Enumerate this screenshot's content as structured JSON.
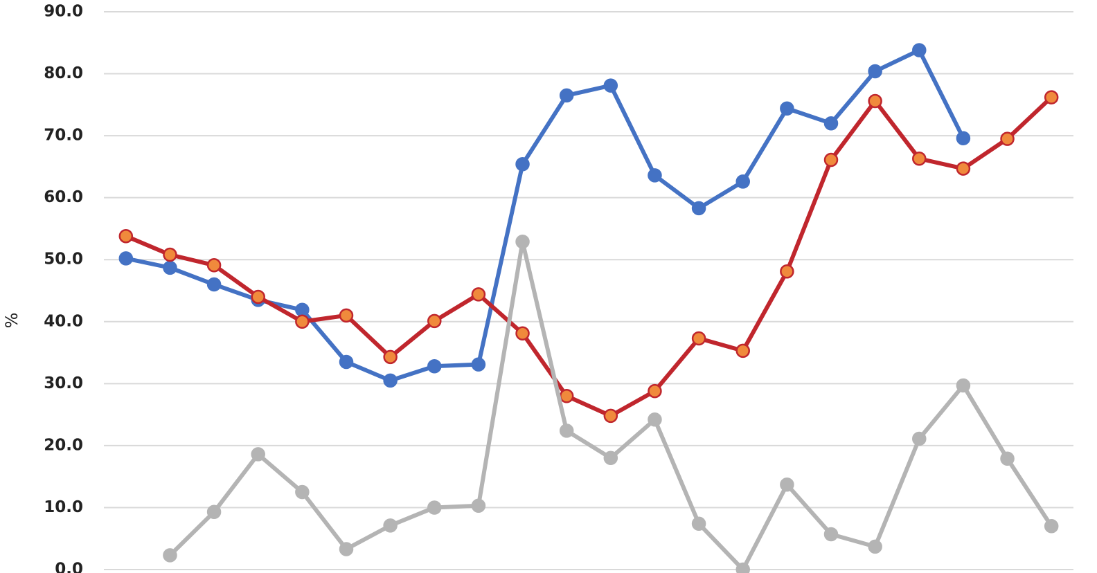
{
  "chart_data": {
    "type": "line",
    "ylabel": "%",
    "categories": [
      null,
      null,
      null,
      null,
      null,
      null,
      null,
      null,
      null,
      null,
      null,
      null,
      null,
      null,
      null,
      null,
      null,
      null,
      null,
      null,
      null,
      null
    ],
    "ylim": [
      0,
      90
    ],
    "yticks": [
      {
        "value": 0,
        "label": "0.0"
      },
      {
        "value": 10,
        "label": "10.0"
      },
      {
        "value": 20,
        "label": "20.0"
      },
      {
        "value": 30,
        "label": "30.0"
      },
      {
        "value": 40,
        "label": "40.0"
      },
      {
        "value": 50,
        "label": "50.0"
      },
      {
        "value": 60,
        "label": "60.0"
      },
      {
        "value": 70,
        "label": "70.0"
      },
      {
        "value": 80,
        "label": "80.0"
      },
      {
        "value": 90,
        "label": "90.0"
      }
    ],
    "grid": true,
    "series": [
      {
        "color": "#4472c4",
        "marker_fill": "#4472c4",
        "values": [
          50.2,
          48.7,
          46.0,
          43.5,
          41.9,
          33.5,
          30.5,
          32.8,
          33.1,
          65.4,
          76.5,
          78.1,
          63.6,
          58.3,
          62.6,
          74.4,
          72.0,
          80.4,
          83.8,
          69.6,
          null,
          null
        ]
      },
      {
        "color": "#c0262d",
        "marker_fill": "#f08a3c",
        "values": [
          53.8,
          50.8,
          49.1,
          44.0,
          40.0,
          41.0,
          34.3,
          40.1,
          44.4,
          38.1,
          28.0,
          24.8,
          28.8,
          37.3,
          35.3,
          48.1,
          66.1,
          75.6,
          66.3,
          64.7,
          69.5,
          76.2
        ]
      },
      {
        "color": "#b4b4b4",
        "marker_fill": "#b4b4b4",
        "values": [
          null,
          2.3,
          9.3,
          18.6,
          12.5,
          3.3,
          7.1,
          10.0,
          10.3,
          52.9,
          22.4,
          18.0,
          24.2,
          7.4,
          0.0,
          13.7,
          5.7,
          3.7,
          21.1,
          29.7,
          17.9,
          7.0
        ]
      }
    ]
  }
}
